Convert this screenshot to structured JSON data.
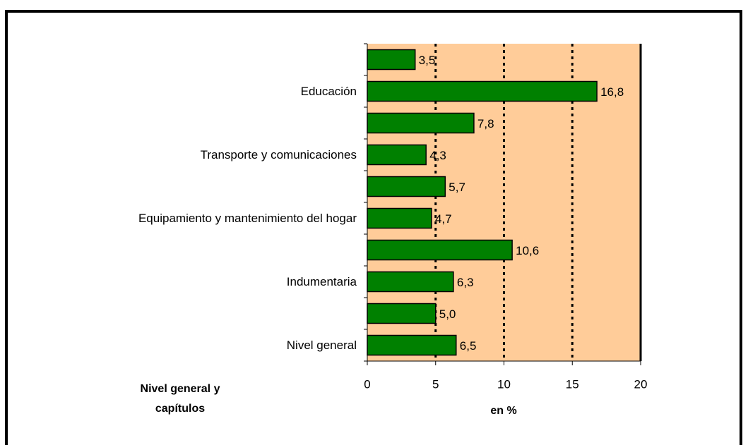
{
  "chart_data": {
    "type": "bar",
    "orientation": "horizontal",
    "categories": [
      null,
      "Educación",
      null,
      "Transporte y comunicaciones",
      null,
      "Equipamiento y mantenimiento del hogar",
      null,
      "Indumentaria",
      null,
      "Nivel general"
    ],
    "values": [
      3.5,
      16.8,
      7.8,
      4.3,
      5.7,
      4.7,
      10.6,
      6.3,
      5.0,
      6.5
    ],
    "value_labels": [
      "3,5",
      "16,8",
      "7,8",
      "4,3",
      "5,7",
      "4,7",
      "10,6",
      "6,3",
      "5,0",
      "6,5"
    ],
    "color": "#008000",
    "background": "#ffcc99",
    "xlim": [
      0,
      20
    ],
    "xticks": [
      0,
      5,
      10,
      15,
      20
    ],
    "grid": true,
    "x_label": "en %",
    "y_label": "Nivel general y capítulos"
  }
}
